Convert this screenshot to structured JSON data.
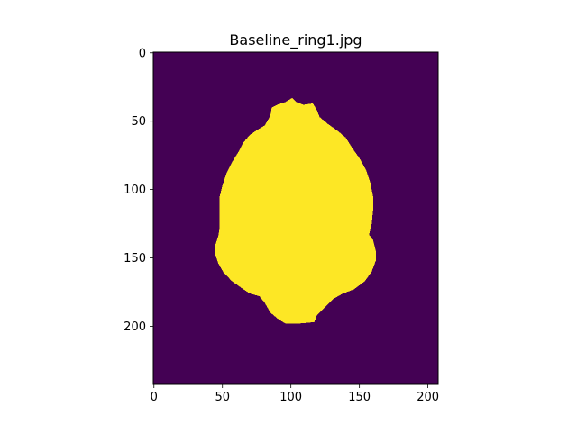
{
  "chart_data": {
    "type": "heatmap",
    "title": "Baseline_ring1.jpg",
    "xlabel": "",
    "ylabel": "",
    "image_width": 208,
    "image_height": 243,
    "xlim": [
      -0.5,
      207.5
    ],
    "ylim": [
      242.5,
      -0.5
    ],
    "x_ticks": [
      0,
      50,
      100,
      150,
      200
    ],
    "x_tick_labels": [
      "0",
      "50",
      "100",
      "150",
      "200"
    ],
    "y_ticks": [
      0,
      50,
      100,
      150,
      200
    ],
    "y_tick_labels": [
      "0",
      "50",
      "100",
      "150",
      "200"
    ],
    "colormap": "viridis",
    "background_value": 0,
    "mask_value": 1,
    "colors": {
      "background": "#440154",
      "mask": "#fde725"
    },
    "mask_outline": [
      [
        101,
        33
      ],
      [
        104,
        36
      ],
      [
        109,
        38
      ],
      [
        116,
        37
      ],
      [
        119,
        42
      ],
      [
        121,
        47
      ],
      [
        127,
        52
      ],
      [
        134,
        57
      ],
      [
        140,
        62
      ],
      [
        145,
        70
      ],
      [
        150,
        77
      ],
      [
        155,
        86
      ],
      [
        158,
        95
      ],
      [
        160,
        105
      ],
      [
        160,
        115
      ],
      [
        159,
        125
      ],
      [
        157,
        133
      ],
      [
        160,
        137
      ],
      [
        162,
        145
      ],
      [
        162,
        152
      ],
      [
        159,
        160
      ],
      [
        154,
        167
      ],
      [
        146,
        173
      ],
      [
        138,
        176
      ],
      [
        131,
        180
      ],
      [
        125,
        186
      ],
      [
        119,
        192
      ],
      [
        117,
        197
      ],
      [
        106,
        198
      ],
      [
        96,
        198
      ],
      [
        91,
        195
      ],
      [
        85,
        190
      ],
      [
        81,
        183
      ],
      [
        77,
        178
      ],
      [
        70,
        176
      ],
      [
        64,
        172
      ],
      [
        57,
        167
      ],
      [
        51,
        161
      ],
      [
        47,
        154
      ],
      [
        45,
        148
      ],
      [
        45,
        140
      ],
      [
        47,
        134
      ],
      [
        48,
        128
      ],
      [
        48,
        118
      ],
      [
        48,
        105
      ],
      [
        50,
        97
      ],
      [
        53,
        88
      ],
      [
        57,
        80
      ],
      [
        62,
        72
      ],
      [
        65,
        66
      ],
      [
        70,
        60
      ],
      [
        76,
        56
      ],
      [
        81,
        53
      ],
      [
        85,
        46
      ],
      [
        86,
        40
      ],
      [
        90,
        38
      ],
      [
        96,
        36
      ]
    ]
  }
}
